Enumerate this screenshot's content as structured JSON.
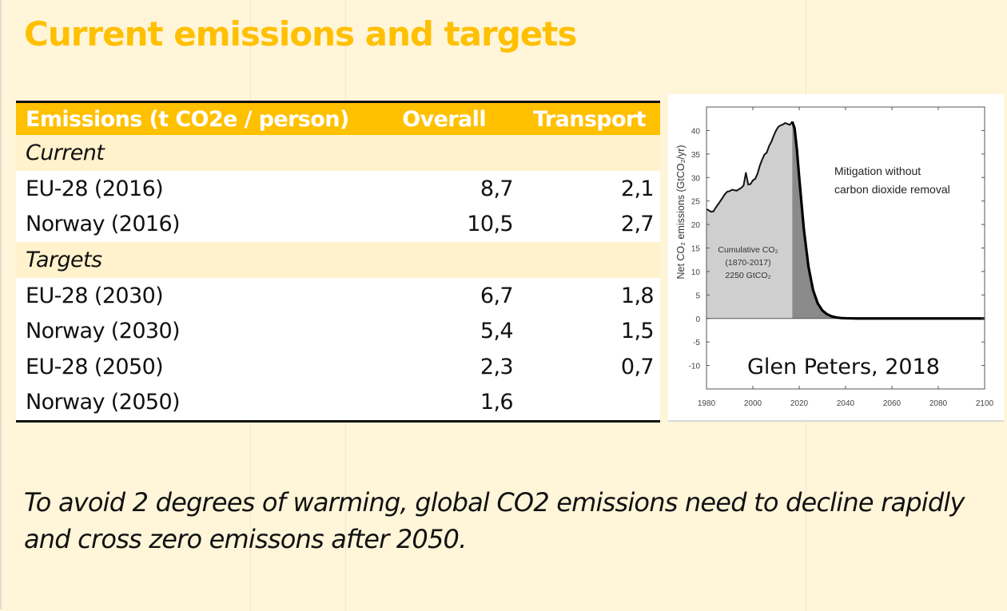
{
  "slide": {
    "title": "Current emissions and targets",
    "caption": "To avoid 2 degrees of warming, global CO2 emissions need to decline rapidly and cross zero emissons after 2050.",
    "colors": {
      "accent": "#ffc000",
      "background": "#fff5d9",
      "section_band": "#fff2cc"
    }
  },
  "table": {
    "headers": [
      "Emissions (t CO2e / person)",
      "Overall",
      "Transport"
    ],
    "sections": [
      {
        "label": "Current",
        "rows": [
          {
            "name": "EU-28 (2016)",
            "overall": "8,7",
            "transport": "2,1"
          },
          {
            "name": "Norway (2016)",
            "overall": "10,5",
            "transport": "2,7"
          }
        ]
      },
      {
        "label": "Targets",
        "rows": [
          {
            "name": "EU-28 (2030)",
            "overall": "6,7",
            "transport": "1,8"
          },
          {
            "name": "Norway (2030)",
            "overall": "5,4",
            "transport": "1,5"
          },
          {
            "name": "EU-28 (2050)",
            "overall": "2,3",
            "transport": "0,7"
          },
          {
            "name": "Norway (2050)",
            "overall": "1,6",
            "transport": ""
          }
        ]
      }
    ]
  },
  "chart_data": {
    "type": "area",
    "title": "",
    "ylabel": "Net CO₂ emissions (GtCO₂/yr)",
    "xlabel": "",
    "xlim": [
      1980,
      2100
    ],
    "ylim": [
      -15,
      45
    ],
    "x_ticks": [
      1980,
      2000,
      2020,
      2040,
      2060,
      2080,
      2100
    ],
    "y_ticks": [
      -10,
      -5,
      0,
      5,
      10,
      15,
      20,
      25,
      30,
      35,
      40
    ],
    "grid": false,
    "annotations": {
      "scenario": [
        "Mitigation without",
        "carbon dioxide removal"
      ],
      "cumulative": [
        "Cumulative CO₂",
        "(1870-2017)",
        "2250 GtCO₂"
      ],
      "credit": "Glen Peters, 2018"
    },
    "split_year": 2017,
    "series": [
      {
        "name": "Net CO2 emissions",
        "x": [
          1980,
          1981,
          1982,
          1983,
          1984,
          1986,
          1988,
          1989,
          1990,
          1991,
          1992,
          1993,
          1995,
          1996,
          1997,
          1998,
          1999,
          2000,
          2001,
          2002,
          2003,
          2004,
          2005,
          2006,
          2007,
          2008,
          2009,
          2010,
          2011,
          2012,
          2013,
          2014,
          2015,
          2016,
          2017,
          2018,
          2019,
          2020,
          2022,
          2024,
          2026,
          2028,
          2030,
          2032,
          2034,
          2036,
          2038,
          2040,
          2045,
          2050,
          2060,
          2080,
          2100
        ],
        "y": [
          23.3,
          23.0,
          22.7,
          22.8,
          23.6,
          25.0,
          26.5,
          27.0,
          27.1,
          27.4,
          27.3,
          27.2,
          27.8,
          28.3,
          31.0,
          28.5,
          28.6,
          29.4,
          29.7,
          30.8,
          32.5,
          33.8,
          34.9,
          35.3,
          36.7,
          37.6,
          38.9,
          40.0,
          40.8,
          41.1,
          41.3,
          41.6,
          41.4,
          41.2,
          41.9,
          40.5,
          36.0,
          30.0,
          19.0,
          11.0,
          6.0,
          3.2,
          1.7,
          0.9,
          0.45,
          0.22,
          0.1,
          0.05,
          0.0,
          0.0,
          0.0,
          0.0,
          0.0
        ]
      }
    ]
  }
}
